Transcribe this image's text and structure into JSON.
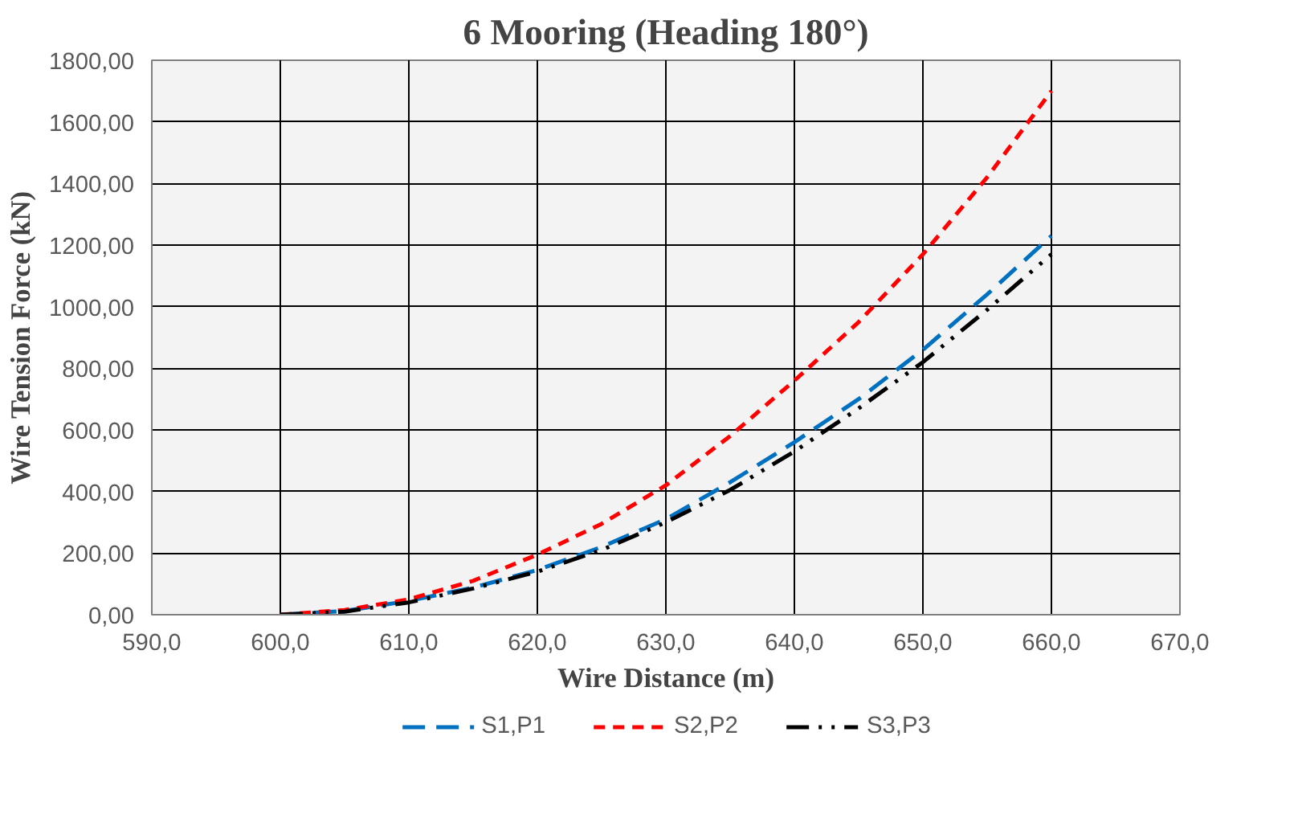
{
  "chart_data": {
    "type": "line",
    "title": "6 Mooring (Heading 180°)",
    "xlabel": "Wire Distance (m)",
    "ylabel": "Wire Tension Force (kN)",
    "x": [
      600,
      605,
      610,
      615,
      620,
      625,
      630,
      635,
      640,
      645,
      650,
      655,
      660
    ],
    "series": [
      {
        "name": "S1,P1",
        "color": "#0070c0",
        "values": [
          0,
          12,
          45,
          88,
          145,
          220,
          310,
          430,
          560,
          700,
          860,
          1040,
          1230
        ]
      },
      {
        "name": "S2,P2",
        "color": "#ff0000",
        "values": [
          0,
          15,
          50,
          110,
          195,
          295,
          420,
          580,
          760,
          950,
          1170,
          1420,
          1700
        ]
      },
      {
        "name": "S3,P3",
        "color": "#000000",
        "values": [
          0,
          10,
          40,
          85,
          140,
          210,
          300,
          405,
          530,
          670,
          820,
          990,
          1170
        ]
      }
    ],
    "xlim": [
      590,
      670
    ],
    "ylim": [
      0,
      1800
    ],
    "xticks": [
      {
        "value": 590,
        "label": "590,0"
      },
      {
        "value": 600,
        "label": "600,0"
      },
      {
        "value": 610,
        "label": "610,0"
      },
      {
        "value": 620,
        "label": "620,0"
      },
      {
        "value": 630,
        "label": "630,0"
      },
      {
        "value": 640,
        "label": "640,0"
      },
      {
        "value": 650,
        "label": "650,0"
      },
      {
        "value": 660,
        "label": "660,0"
      },
      {
        "value": 670,
        "label": "670,0"
      }
    ],
    "yticks": [
      {
        "value": 0,
        "label": "0,00"
      },
      {
        "value": 200,
        "label": "200,00"
      },
      {
        "value": 400,
        "label": "400,00"
      },
      {
        "value": 600,
        "label": "600,00"
      },
      {
        "value": 800,
        "label": "800,00"
      },
      {
        "value": 1000,
        "label": "1000,00"
      },
      {
        "value": 1200,
        "label": "1200,00"
      },
      {
        "value": 1400,
        "label": "1400,00"
      },
      {
        "value": 1600,
        "label": "1600,00"
      },
      {
        "value": 1800,
        "label": "1800,00"
      }
    ],
    "grid": true,
    "legend": "bottom",
    "marker": "none",
    "line_style": "dashed"
  }
}
